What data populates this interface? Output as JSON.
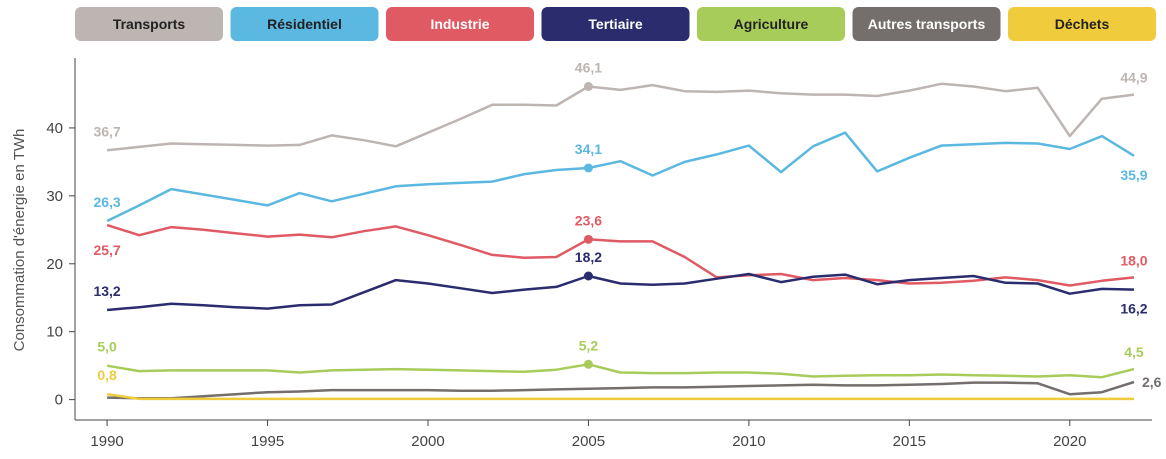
{
  "chart_data": {
    "type": "line",
    "y_label": "Consommation d'énergie en TWh",
    "x": [
      1990,
      1991,
      1992,
      1993,
      1994,
      1995,
      1996,
      1997,
      1998,
      1999,
      2000,
      2001,
      2002,
      2003,
      2004,
      2005,
      2006,
      2007,
      2008,
      2009,
      2010,
      2011,
      2012,
      2013,
      2014,
      2015,
      2016,
      2017,
      2018,
      2019,
      2020,
      2021,
      2022
    ],
    "xlim": [
      1989,
      2022.5
    ],
    "xticks": [
      1990,
      1995,
      2000,
      2005,
      2010,
      2015,
      2020
    ],
    "ylim": [
      -3,
      50
    ],
    "yticks": [
      0,
      10,
      20,
      30,
      40
    ],
    "series": [
      {
        "name": "Transports",
        "color": "#bdb5b2",
        "values": [
          36.7,
          37.2,
          37.7,
          37.6,
          37.5,
          37.4,
          37.5,
          38.9,
          38.2,
          37.3,
          39.3,
          41.3,
          43.4,
          43.4,
          43.3,
          46.1,
          45.6,
          46.3,
          45.4,
          45.3,
          45.5,
          45.1,
          44.9,
          44.9,
          44.7,
          45.5,
          46.5,
          46.1,
          45.4,
          45.9,
          38.8,
          44.3,
          44.9
        ],
        "value_labels": [
          "36,7",
          null,
          null,
          null,
          null,
          null,
          null,
          null,
          null,
          null,
          null,
          null,
          null,
          null,
          null,
          "46,1",
          null,
          null,
          null,
          null,
          null,
          null,
          null,
          null,
          null,
          null,
          null,
          null,
          null,
          null,
          null,
          null,
          "44,9"
        ]
      },
      {
        "name": "Résidentiel",
        "color": "#5bb8e0",
        "values": [
          26.3,
          28.6,
          31.0,
          30.2,
          29.4,
          28.6,
          30.4,
          29.2,
          30.3,
          31.4,
          31.7,
          31.9,
          32.1,
          33.2,
          33.8,
          34.1,
          35.1,
          33.0,
          35.0,
          36.1,
          37.4,
          33.5,
          37.3,
          39.3,
          33.6,
          35.6,
          37.4,
          37.6,
          37.8,
          37.7,
          36.9,
          38.8,
          35.9
        ],
        "value_labels": [
          "26,3",
          null,
          null,
          null,
          null,
          null,
          null,
          null,
          null,
          null,
          null,
          null,
          null,
          null,
          null,
          "34,1",
          null,
          null,
          null,
          null,
          null,
          null,
          null,
          null,
          null,
          null,
          null,
          null,
          null,
          null,
          null,
          null,
          "35,9"
        ]
      },
      {
        "name": "Industrie",
        "color": "#e05a64",
        "values": [
          25.7,
          24.2,
          25.4,
          25.0,
          24.5,
          24.0,
          24.3,
          23.9,
          24.8,
          25.5,
          24.2,
          22.8,
          21.3,
          20.9,
          21.0,
          23.6,
          23.3,
          23.3,
          21.0,
          18.0,
          18.3,
          18.5,
          17.6,
          17.9,
          17.6,
          17.1,
          17.2,
          17.5,
          18.0,
          17.6,
          16.8,
          17.5,
          18.0
        ],
        "value_labels": [
          "25,7",
          null,
          null,
          null,
          null,
          null,
          null,
          null,
          null,
          null,
          null,
          null,
          null,
          null,
          null,
          "23,6",
          null,
          null,
          null,
          null,
          null,
          null,
          null,
          null,
          null,
          null,
          null,
          null,
          null,
          null,
          null,
          null,
          "18,0"
        ]
      },
      {
        "name": "Tertiaire",
        "color": "#2a2c6e",
        "values": [
          13.2,
          13.6,
          14.1,
          13.9,
          13.6,
          13.4,
          13.9,
          14.0,
          15.8,
          17.6,
          17.1,
          16.4,
          15.7,
          16.2,
          16.6,
          18.2,
          17.1,
          16.9,
          17.1,
          17.8,
          18.5,
          17.3,
          18.1,
          18.4,
          17.0,
          17.6,
          17.9,
          18.2,
          17.2,
          17.1,
          15.6,
          16.3,
          16.2
        ],
        "value_labels": [
          "13,2",
          null,
          null,
          null,
          null,
          null,
          null,
          null,
          null,
          null,
          null,
          null,
          null,
          null,
          null,
          "18,2",
          null,
          null,
          null,
          null,
          null,
          null,
          null,
          null,
          null,
          null,
          null,
          null,
          null,
          null,
          null,
          null,
          "16,2"
        ]
      },
      {
        "name": "Agriculture",
        "color": "#a8cc5a",
        "values": [
          5.0,
          4.2,
          4.3,
          4.3,
          4.3,
          4.3,
          4.0,
          4.3,
          4.4,
          4.5,
          4.4,
          4.3,
          4.2,
          4.1,
          4.4,
          5.2,
          4.0,
          3.9,
          3.9,
          4.0,
          4.0,
          3.8,
          3.4,
          3.5,
          3.6,
          3.6,
          3.7,
          3.6,
          3.5,
          3.4,
          3.6,
          3.3,
          4.5
        ],
        "value_labels": [
          "5,0",
          null,
          null,
          null,
          null,
          null,
          null,
          null,
          null,
          null,
          null,
          null,
          null,
          null,
          null,
          "5,2",
          null,
          null,
          null,
          null,
          null,
          null,
          null,
          null,
          null,
          null,
          null,
          null,
          null,
          null,
          null,
          null,
          "4,5"
        ]
      },
      {
        "name": "Autres transports",
        "color": "#746e6c",
        "values": [
          0.3,
          0.2,
          0.2,
          0.5,
          0.8,
          1.1,
          1.2,
          1.4,
          1.4,
          1.4,
          1.4,
          1.3,
          1.3,
          1.4,
          1.5,
          1.6,
          1.7,
          1.8,
          1.8,
          1.9,
          2.0,
          2.1,
          2.2,
          2.1,
          2.1,
          2.2,
          2.3,
          2.5,
          2.5,
          2.4,
          0.8,
          1.1,
          2.6
        ],
        "value_labels": [
          null,
          null,
          null,
          null,
          null,
          null,
          null,
          null,
          null,
          null,
          null,
          null,
          null,
          null,
          null,
          null,
          null,
          null,
          null,
          null,
          null,
          null,
          null,
          null,
          null,
          null,
          null,
          null,
          null,
          null,
          null,
          null,
          "2,6"
        ]
      },
      {
        "name": "Déchets",
        "color": "#f0cc3c",
        "values": [
          0.8,
          0.1,
          0.1,
          0.1,
          0.1,
          0.1,
          0.1,
          0.1,
          0.1,
          0.1,
          0.1,
          0.1,
          0.1,
          0.1,
          0.1,
          0.1,
          0.1,
          0.1,
          0.1,
          0.1,
          0.1,
          0.1,
          0.1,
          0.1,
          0.1,
          0.1,
          0.1,
          0.1,
          0.1,
          0.1,
          0.1,
          0.1,
          0.1
        ],
        "value_labels": [
          "0,8",
          null,
          null,
          null,
          null,
          null,
          null,
          null,
          null,
          null,
          null,
          null,
          null,
          null,
          null,
          null,
          null,
          null,
          null,
          null,
          null,
          null,
          null,
          null,
          null,
          null,
          null,
          null,
          null,
          null,
          null,
          null,
          null
        ]
      }
    ]
  }
}
